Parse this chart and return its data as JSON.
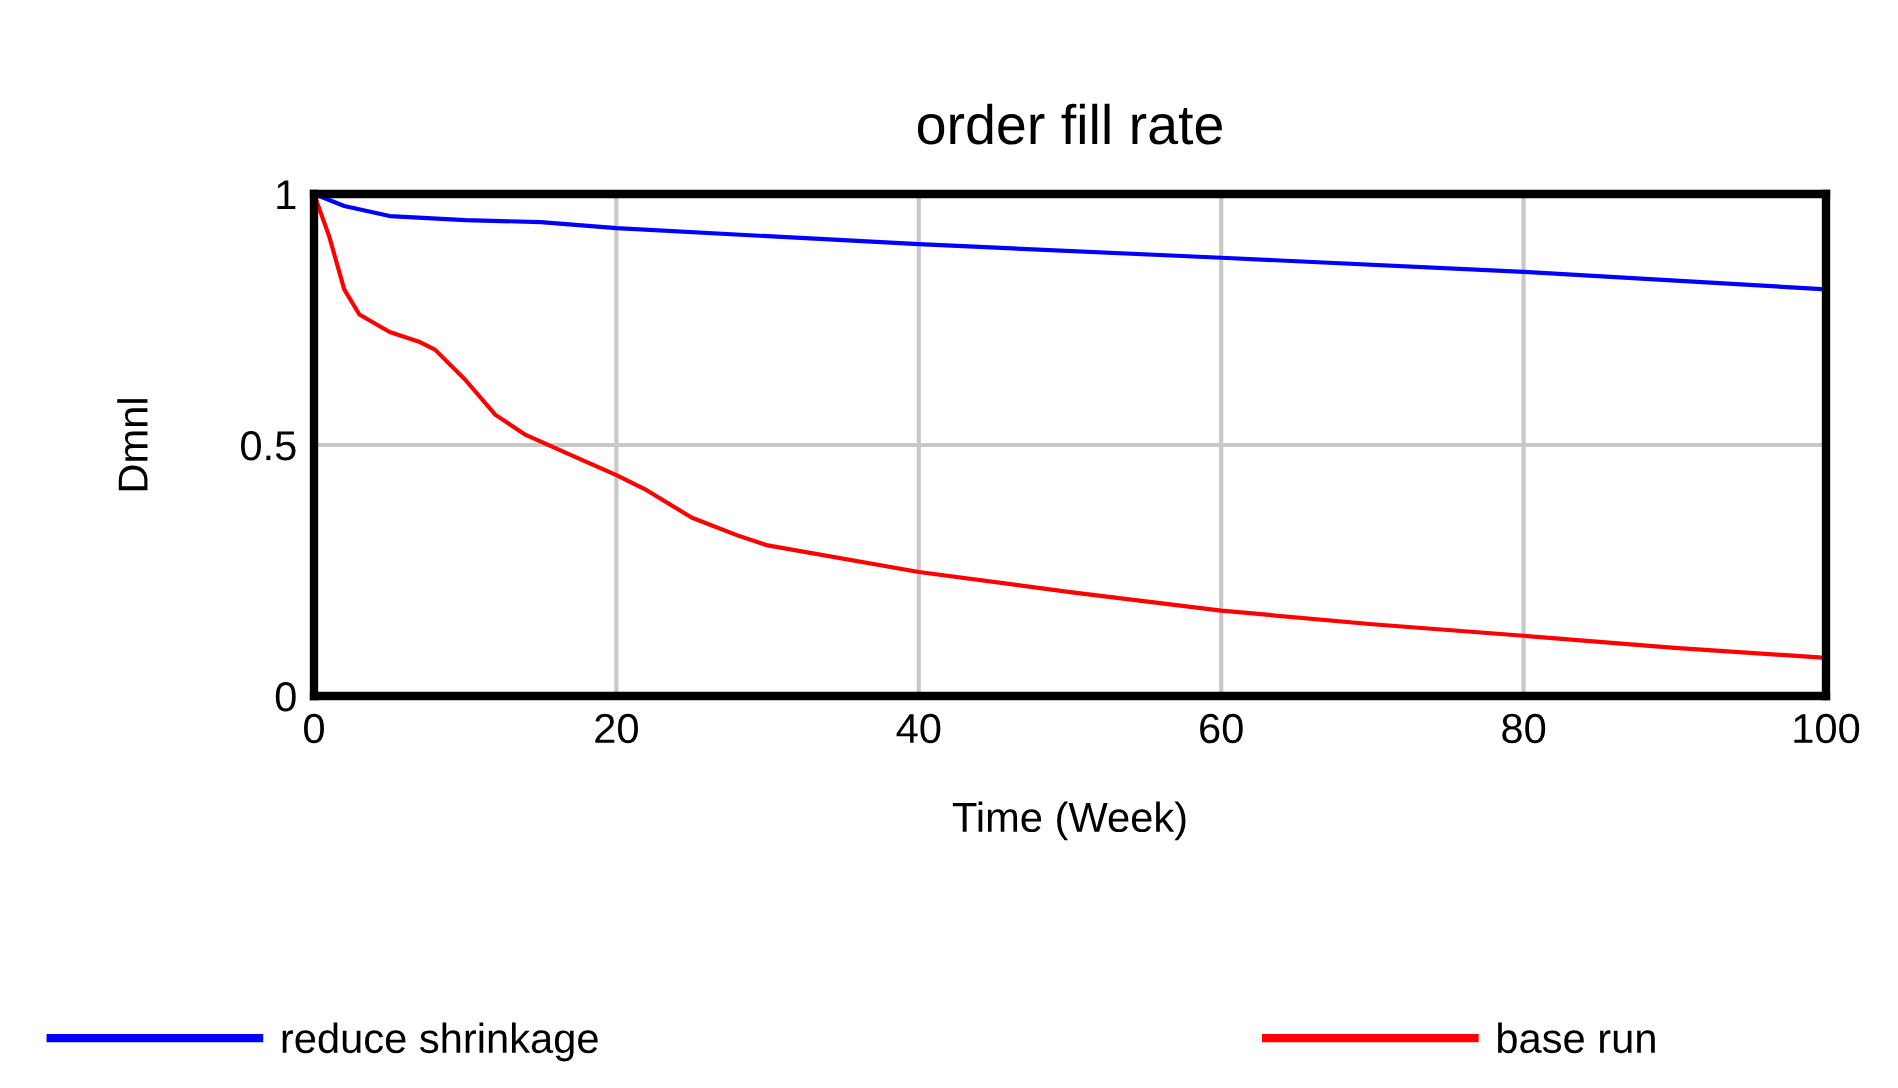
{
  "chart_data": {
    "type": "line",
    "title": "order fill rate",
    "xlabel": "Time (Week)",
    "ylabel": "Dmnl",
    "xlim": [
      0,
      100
    ],
    "xticks": [
      0,
      20,
      40,
      60,
      80,
      100
    ],
    "ylim": [
      0,
      1
    ],
    "yticks": [
      0,
      0.5,
      1
    ],
    "grid": true,
    "legend": "bottom",
    "line_style": "solid",
    "series": [
      {
        "name": "reduce shrinkage",
        "color": "#0000ff",
        "x": [
          0,
          2,
          5,
          10,
          15,
          20,
          30,
          40,
          60,
          80,
          100
        ],
        "values": [
          1,
          0.976,
          0.956,
          0.948,
          0.944,
          0.932,
          0.916,
          0.9,
          0.873,
          0.845,
          0.81
        ]
      },
      {
        "name": "base run",
        "color": "#ff0000",
        "x": [
          0,
          1,
          2,
          3,
          5,
          7,
          8,
          10,
          12,
          14,
          17,
          20,
          22,
          25,
          28,
          30,
          40,
          50,
          60,
          70,
          80,
          90,
          100
        ],
        "values": [
          1,
          0.916,
          0.81,
          0.76,
          0.725,
          0.705,
          0.69,
          0.63,
          0.56,
          0.52,
          0.48,
          0.44,
          0.41,
          0.355,
          0.32,
          0.3,
          0.247,
          0.207,
          0.17,
          0.143,
          0.12,
          0.096,
          0.076
        ]
      }
    ]
  }
}
